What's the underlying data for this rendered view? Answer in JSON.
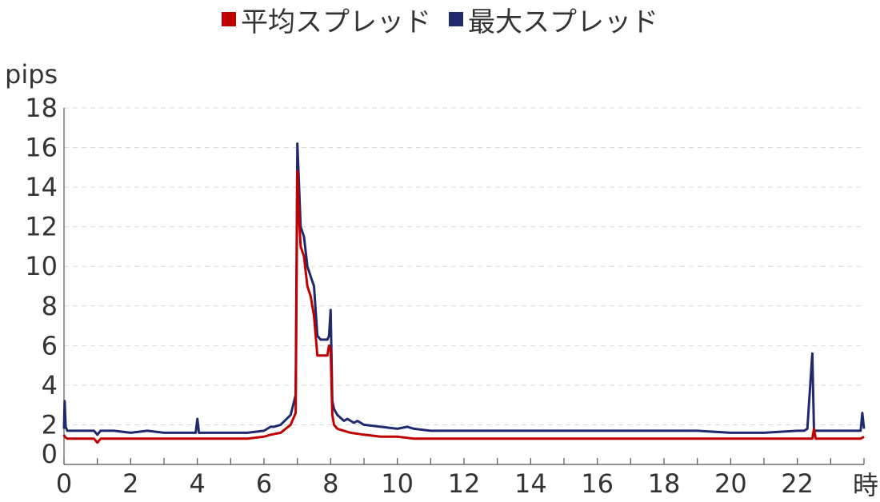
{
  "legend": {
    "items": [
      {
        "label": "平均スプレッド",
        "color": "#c00000"
      },
      {
        "label": "最大スプレッド",
        "color": "#1f2a6e"
      }
    ]
  },
  "axes": {
    "y_unit": "pips",
    "x_unit": "時"
  },
  "chart_data": {
    "type": "line",
    "title": "",
    "xlabel": "時",
    "ylabel": "pips",
    "xlim": [
      0,
      24
    ],
    "ylim": [
      0,
      18
    ],
    "x_ticks": [
      "0",
      "2",
      "4",
      "6",
      "8",
      "10",
      "12",
      "14",
      "16",
      "18",
      "20",
      "22"
    ],
    "y_ticks": [
      "0",
      "2",
      "4",
      "6",
      "8",
      "10",
      "12",
      "14",
      "16",
      "18"
    ],
    "grid": "horizontal dashed",
    "legend_position": "top-center",
    "series": [
      {
        "name": "平均スプレッド",
        "color": "#c00000",
        "x": [
          0,
          0.02,
          0.1,
          0.5,
          0.9,
          1.0,
          1.1,
          1.5,
          2.0,
          2.5,
          3.0,
          3.5,
          4.0,
          4.5,
          5.0,
          5.5,
          6.0,
          6.2,
          6.5,
          6.8,
          6.95,
          7.0,
          7.05,
          7.1,
          7.2,
          7.3,
          7.4,
          7.5,
          7.6,
          7.7,
          7.8,
          7.9,
          7.95,
          8.0,
          8.05,
          8.1,
          8.2,
          8.4,
          8.6,
          9.0,
          9.5,
          10.0,
          10.5,
          11,
          12,
          13,
          14,
          15,
          16,
          17,
          18,
          19,
          20,
          21,
          22,
          22.3,
          22.45,
          22.5,
          22.55,
          22.7,
          23,
          23.5,
          23.9,
          24
        ],
        "y": [
          1.5,
          1.4,
          1.3,
          1.3,
          1.3,
          1.1,
          1.3,
          1.3,
          1.3,
          1.3,
          1.3,
          1.3,
          1.3,
          1.3,
          1.3,
          1.3,
          1.4,
          1.5,
          1.6,
          2.0,
          2.6,
          14.8,
          12.5,
          11.0,
          10.5,
          9.0,
          8.5,
          7.5,
          5.5,
          5.5,
          5.5,
          5.5,
          6.0,
          5.8,
          2.5,
          2.0,
          1.8,
          1.7,
          1.6,
          1.5,
          1.4,
          1.4,
          1.3,
          1.3,
          1.3,
          1.3,
          1.3,
          1.3,
          1.3,
          1.3,
          1.3,
          1.3,
          1.3,
          1.3,
          1.3,
          1.3,
          1.3,
          1.8,
          1.3,
          1.3,
          1.3,
          1.3,
          1.3,
          1.4
        ]
      },
      {
        "name": "最大スプレッド",
        "color": "#1f2a6e",
        "x": [
          0,
          0.02,
          0.05,
          0.1,
          0.5,
          0.9,
          1.0,
          1.1,
          1.5,
          2.0,
          2.5,
          3.0,
          3.5,
          3.95,
          4.0,
          4.05,
          4.5,
          5.0,
          5.5,
          6.0,
          6.2,
          6.3,
          6.5,
          6.8,
          6.95,
          7.0,
          7.03,
          7.1,
          7.2,
          7.3,
          7.4,
          7.5,
          7.6,
          7.7,
          7.8,
          7.9,
          7.95,
          8.0,
          8.05,
          8.1,
          8.2,
          8.4,
          8.5,
          8.7,
          8.8,
          9.0,
          9.5,
          10.0,
          10.3,
          10.5,
          11,
          12,
          13,
          14,
          15,
          16,
          17,
          18,
          19,
          20,
          21,
          22,
          22.2,
          22.3,
          22.45,
          22.5,
          22.55,
          22.7,
          23,
          23.5,
          23.6,
          23.7,
          23.9,
          23.95,
          24
        ],
        "y": [
          1.8,
          3.2,
          1.9,
          1.7,
          1.7,
          1.7,
          1.5,
          1.7,
          1.7,
          1.6,
          1.7,
          1.6,
          1.6,
          1.6,
          2.3,
          1.6,
          1.6,
          1.6,
          1.6,
          1.7,
          1.9,
          1.9,
          2.0,
          2.5,
          3.5,
          16.2,
          15.0,
          12.0,
          11.5,
          10.0,
          9.5,
          9.0,
          6.5,
          6.3,
          6.3,
          6.3,
          6.5,
          7.8,
          3.2,
          2.8,
          2.5,
          2.2,
          2.3,
          2.1,
          2.2,
          2.0,
          1.9,
          1.8,
          1.9,
          1.8,
          1.7,
          1.7,
          1.7,
          1.7,
          1.7,
          1.7,
          1.7,
          1.7,
          1.7,
          1.6,
          1.6,
          1.7,
          1.7,
          1.8,
          5.6,
          1.7,
          1.7,
          1.7,
          1.7,
          1.7,
          1.7,
          1.7,
          1.7,
          2.6,
          1.8
        ]
      }
    ]
  }
}
